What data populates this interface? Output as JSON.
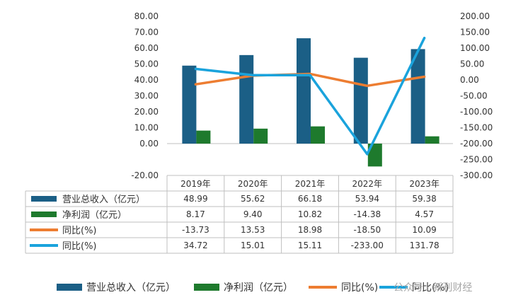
{
  "chart_data": {
    "type": "bar",
    "categories": [
      "2019年",
      "2020年",
      "2021年",
      "2022年",
      "2023年"
    ],
    "series": [
      {
        "name": "营业总收入（亿元）",
        "kind": "bar",
        "axis": "left",
        "color": "#1b5f86",
        "values": [
          48.99,
          55.62,
          66.18,
          53.94,
          59.38
        ],
        "labels": [
          "48.99",
          "55.62",
          "66.18",
          "53.94",
          "59.38"
        ]
      },
      {
        "name": "净利润（亿元）",
        "kind": "bar",
        "axis": "left",
        "color": "#1e7a2d",
        "values": [
          8.17,
          9.4,
          10.82,
          -14.38,
          4.57
        ],
        "labels": [
          "8.17",
          "9.40",
          "10.82",
          "-14.38",
          "4.57"
        ]
      },
      {
        "name": "同比(%)",
        "kind": "line",
        "axis": "right",
        "color": "#ed7d31",
        "values": [
          -13.73,
          13.53,
          18.98,
          -18.5,
          10.09
        ],
        "labels": [
          "-13.73",
          "13.53",
          "18.98",
          "-18.50",
          "10.09"
        ]
      },
      {
        "name": "同比(%)",
        "kind": "line",
        "axis": "right",
        "color": "#1aa3dc",
        "values": [
          34.72,
          15.01,
          15.11,
          -233.0,
          131.78
        ],
        "labels": [
          "34.72",
          "15.01",
          "15.11",
          "-233.00",
          "131.78"
        ]
      }
    ],
    "y_left": {
      "ylim": [
        -20,
        80
      ],
      "ticks": [
        "-20.00",
        "0.00",
        "10.00",
        "20.00",
        "30.00",
        "40.00",
        "50.00",
        "60.00",
        "70.00",
        "80.00"
      ],
      "tick_values": [
        -20,
        0,
        10,
        20,
        30,
        40,
        50,
        60,
        70,
        80
      ]
    },
    "y_right": {
      "ylim": [
        -300,
        200
      ],
      "ticks": [
        "-300.00",
        "-250.00",
        "-200.00",
        "-150.00",
        "-100.00",
        "-50.00",
        "0.00",
        "50.00",
        "100.00",
        "150.00",
        "200.00"
      ],
      "tick_values": [
        -300,
        -250,
        -200,
        -150,
        -100,
        -50,
        0,
        50,
        100,
        150,
        200
      ]
    },
    "legend_position": "bottom",
    "legend_labels": [
      "营业总收入（亿元）",
      "净利润（亿元）",
      "同比(%)",
      "同比(%)"
    ],
    "grid": false,
    "watermark": "公众号 · 新刊财经"
  }
}
